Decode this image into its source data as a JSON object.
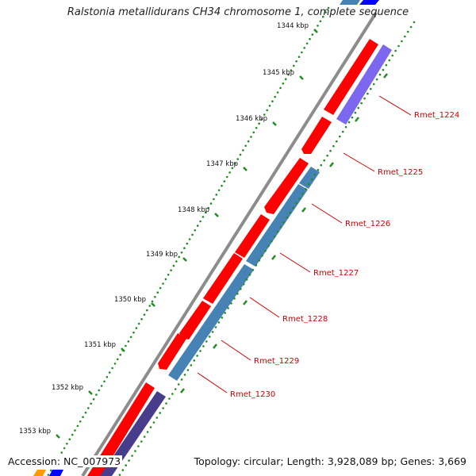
{
  "title": "Ralstonia metallidurans CH34 chromosome 1, complete sequence",
  "footer": {
    "accession": "Accession: NC_007973",
    "summary": "Topology: circular; Length: 3,928,089 bp; Genes: 3,669"
  },
  "ruler": {
    "ticks": [
      "1344 kbp",
      "1345 kbp",
      "1346 kbp",
      "1347 kbp",
      "1348 kbp",
      "1349 kbp",
      "1350 kbp",
      "1351 kbp",
      "1352 kbp",
      "1353 kbp"
    ]
  },
  "genes": [
    {
      "label": "Rmet_1224"
    },
    {
      "label": "Rmet_1225"
    },
    {
      "label": "Rmet_1226"
    },
    {
      "label": "Rmet_1227"
    },
    {
      "label": "Rmet_1228"
    },
    {
      "label": "Rmet_1229"
    },
    {
      "label": "Rmet_1230"
    }
  ],
  "colors": {
    "forward_cds": "#ff0000",
    "reverse_cds_light": "#7b68ee",
    "reverse_cds_blue": "#4682b4",
    "reverse_cds_dark": "#483d8b",
    "ruler_ticks": "#228b22",
    "backbone": "#8c8c8c",
    "gene_labels": "#cc0000"
  }
}
